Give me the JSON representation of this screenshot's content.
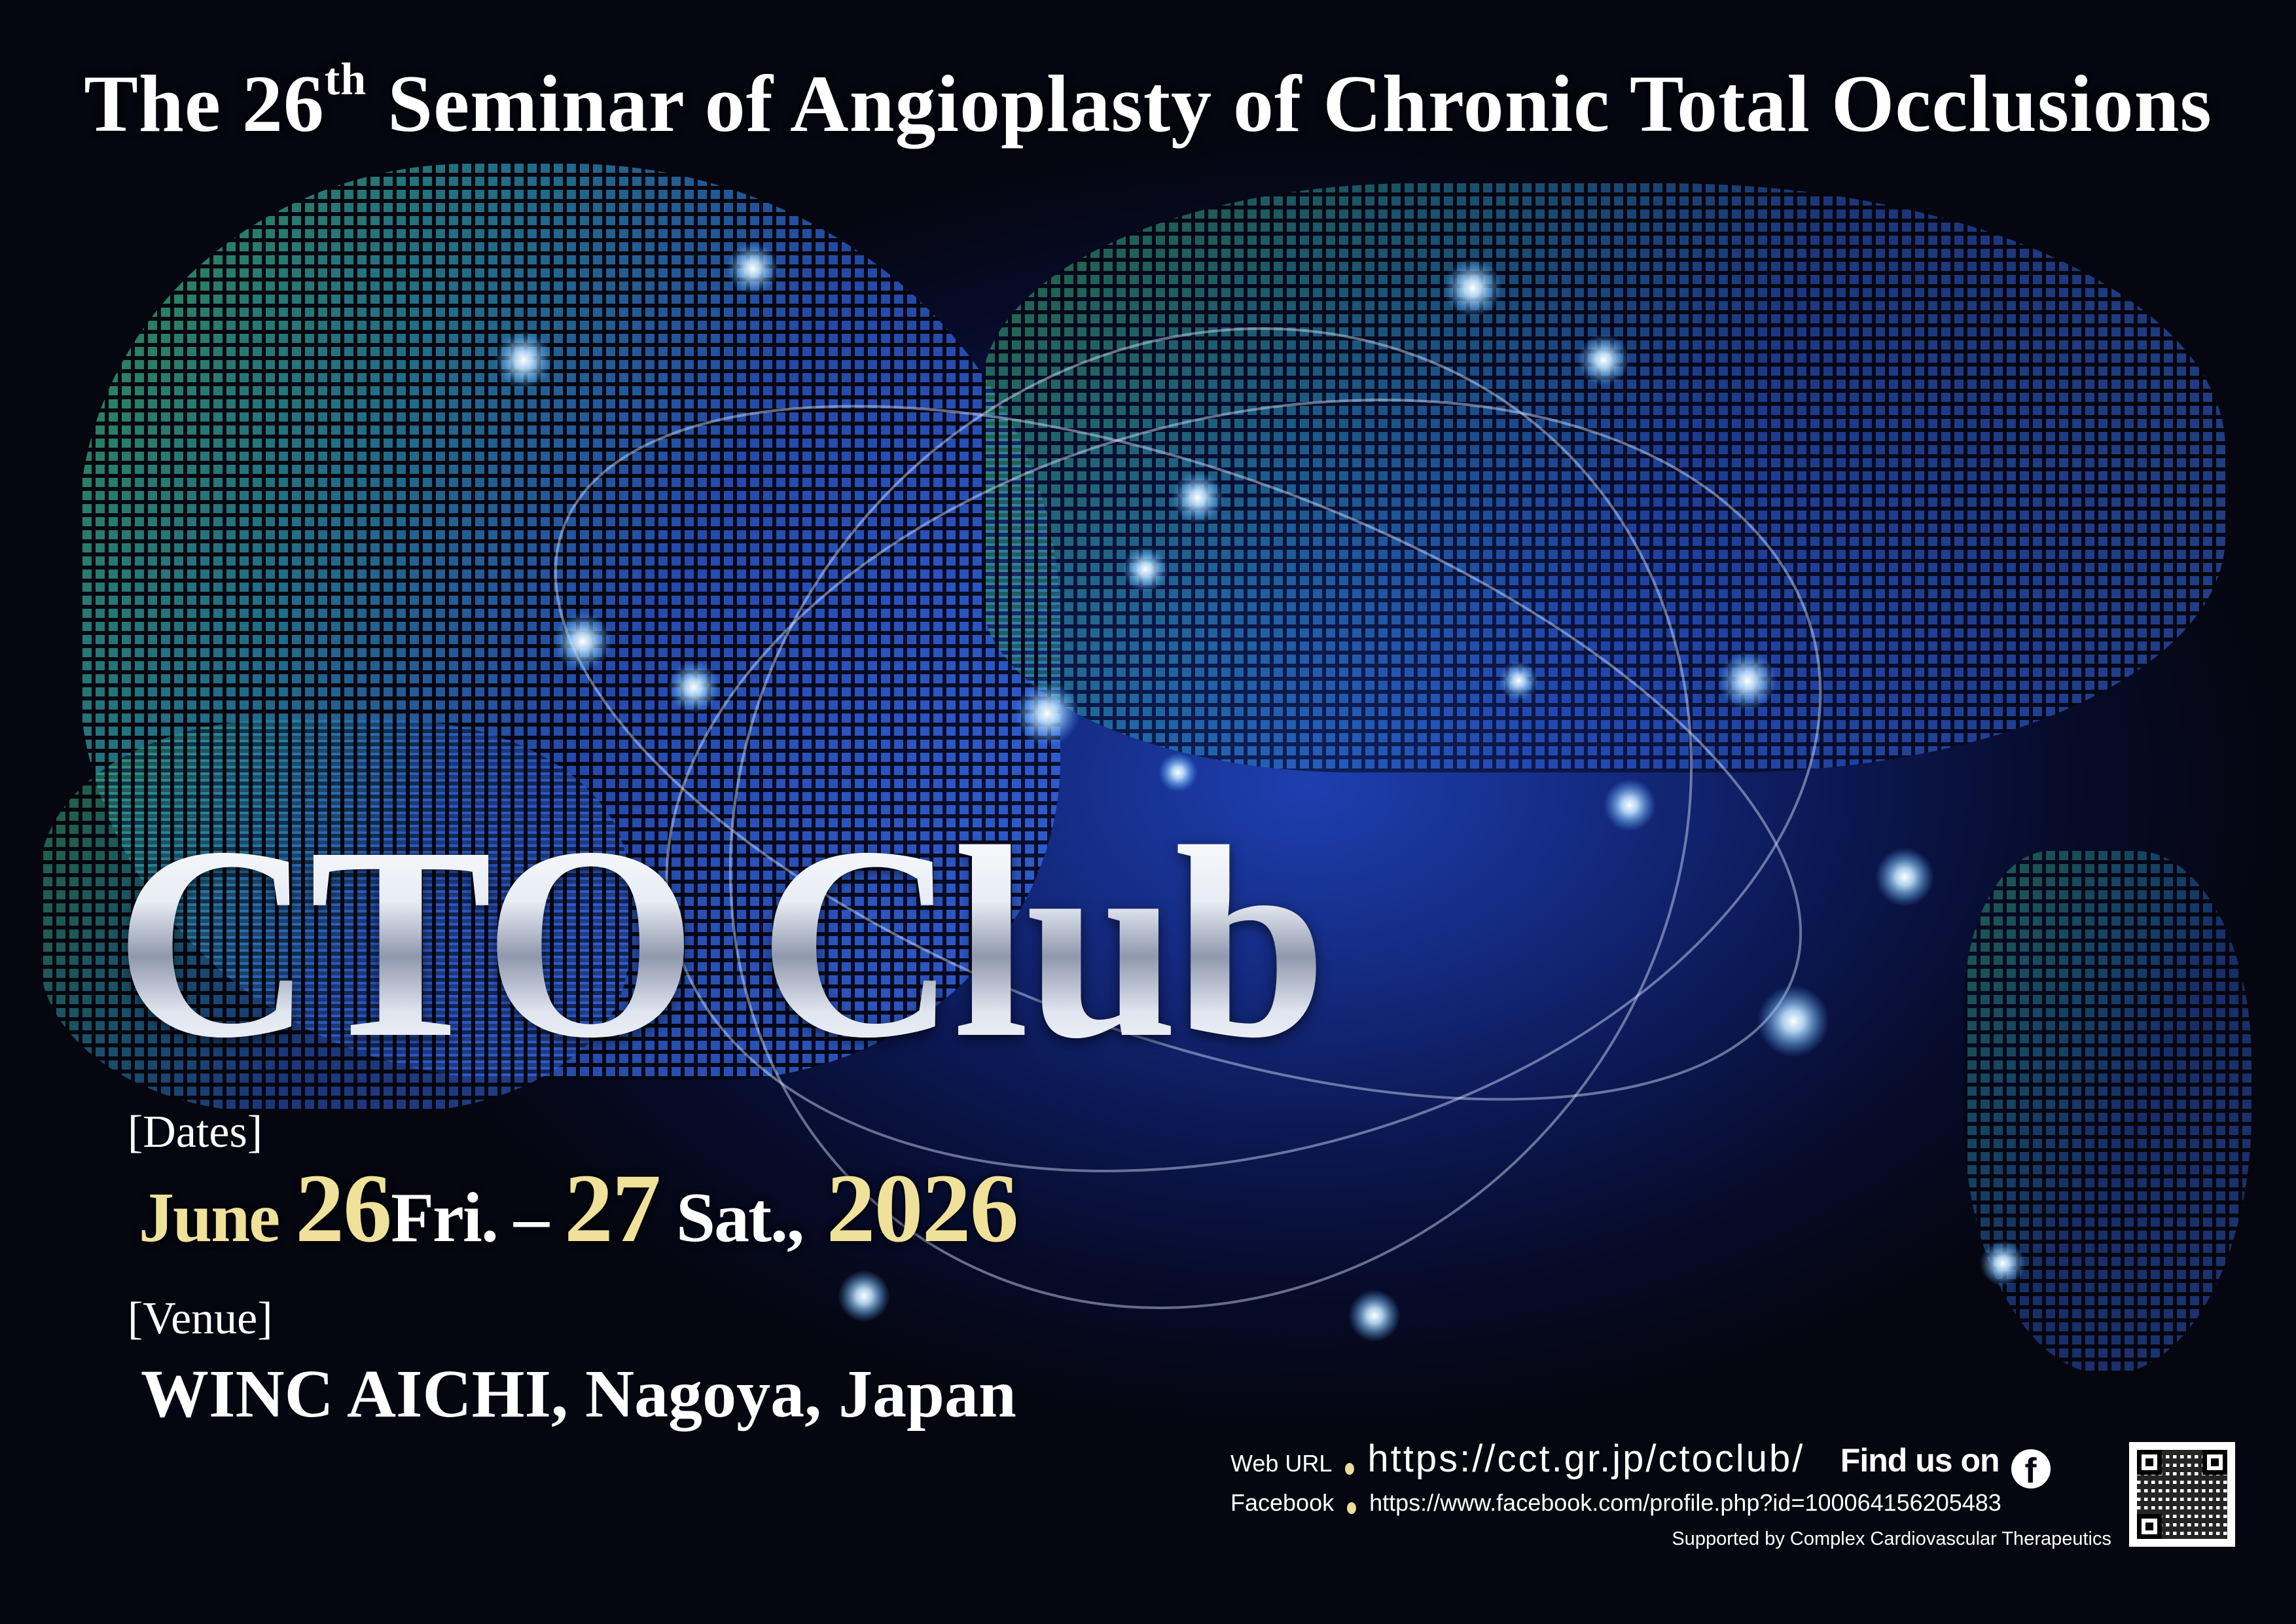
{
  "title": {
    "prefix": "The 26",
    "sup": "th",
    "rest": " Seminar of Angioplasty of Chronic Total Occlusions"
  },
  "logo": "CTO Club",
  "dates": {
    "label": "[Dates]",
    "month": "June ",
    "day1": "26",
    "dow1": "Fri.",
    "dash": " – ",
    "day2": "27",
    "dow2": " Sat.,",
    "year": " 2026"
  },
  "venue": {
    "label": "[Venue]",
    "name": "WINC AICHI, Nagoya, Japan"
  },
  "footer": {
    "web_label": "Web URL",
    "web_url": "https://cct.gr.jp/ctoclub/",
    "find_us": "Find us on",
    "facebook_icon": "facebook-icon",
    "fb_label": "Facebook",
    "fb_url": "https://www.facebook.com/profile.php?id=100064156205483",
    "supported": "Supported by Complex Cardiovascular Therapeutics"
  },
  "colors": {
    "accent_gold": "#efe19a",
    "background": "#0b1750"
  }
}
